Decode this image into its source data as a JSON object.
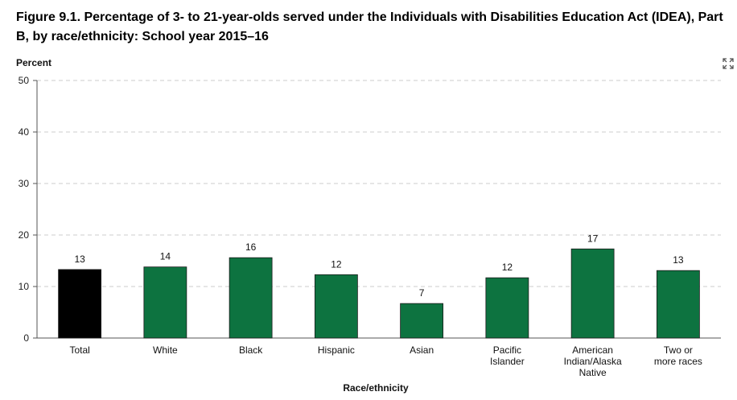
{
  "title": "Figure 9.1. Percentage of 3- to 21-year-olds served under the Individuals with Disabilities Education Act (IDEA), Part B, by race/ethnicity: School year 2015–16",
  "icons": {
    "expand": "expand-arrows-icon"
  },
  "colors": {
    "highlight": "#000000",
    "bar": "#0d7340",
    "grid": "#cccccc",
    "axis": "#555555"
  },
  "chart_data": {
    "type": "bar",
    "ylabel": "Percent",
    "xlabel": "Race/ethnicity",
    "ylim": [
      0,
      50
    ],
    "yticks": [
      0,
      10,
      20,
      30,
      40,
      50
    ],
    "grid": true,
    "categories": [
      [
        "Total"
      ],
      [
        "White"
      ],
      [
        "Black"
      ],
      [
        "Hispanic"
      ],
      [
        "Asian"
      ],
      [
        "Pacific",
        "Islander"
      ],
      [
        "American",
        "Indian/Alaska",
        "Native"
      ],
      [
        "Two or",
        "more races"
      ]
    ],
    "values": [
      13.3,
      13.8,
      15.6,
      12.3,
      6.7,
      11.7,
      17.3,
      13.1
    ],
    "labels": [
      "13",
      "14",
      "16",
      "12",
      "7",
      "12",
      "17",
      "13"
    ],
    "highlight_index": 0
  }
}
